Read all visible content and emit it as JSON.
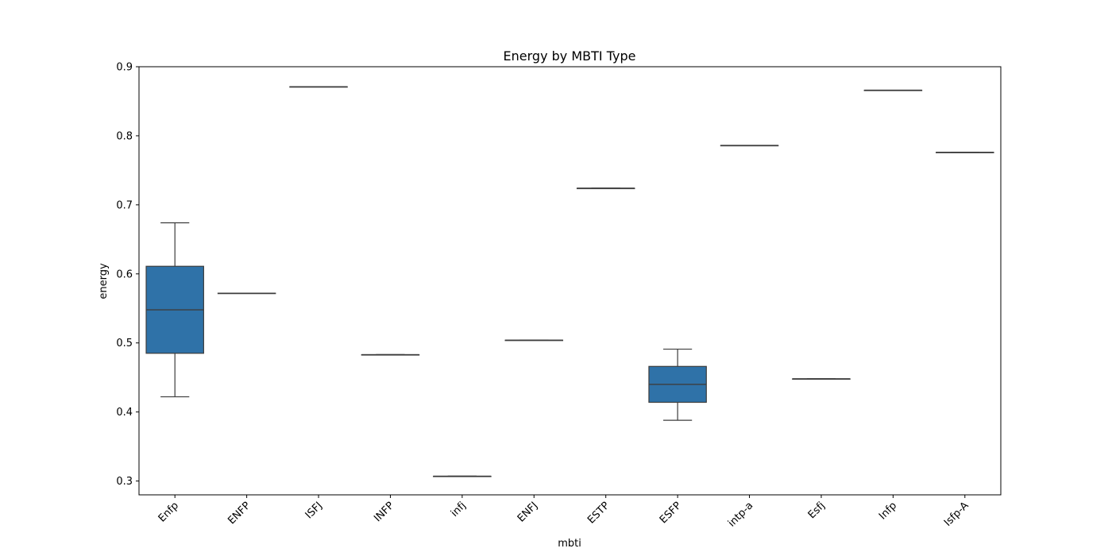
{
  "chart_data": {
    "type": "box",
    "title": "Energy by MBTI Type",
    "xlabel": "mbti",
    "ylabel": "energy",
    "ylim": [
      0.28,
      0.9
    ],
    "yticks": [
      0.3,
      0.4,
      0.5,
      0.6,
      0.7,
      0.8,
      0.9
    ],
    "ytick_labels": [
      "0.3",
      "0.4",
      "0.5",
      "0.6",
      "0.7",
      "0.8",
      "0.9"
    ],
    "box_color": "#2f72a8",
    "line_color": "#3d3d3d",
    "categories": [
      "Enfp",
      "ENFP",
      "ISFJ",
      "INFP",
      "infj",
      "ENFJ",
      "ESTP",
      "ESFP",
      "intp-a",
      "Esfj",
      "Infp",
      "Isfp-A"
    ],
    "boxes": [
      {
        "min": 0.422,
        "q1": 0.485,
        "median": 0.548,
        "q3": 0.611,
        "max": 0.674
      },
      {
        "min": 0.572,
        "q1": 0.572,
        "median": 0.572,
        "q3": 0.572,
        "max": 0.572
      },
      {
        "min": 0.871,
        "q1": 0.871,
        "median": 0.871,
        "q3": 0.871,
        "max": 0.871
      },
      {
        "min": 0.483,
        "q1": 0.483,
        "median": 0.483,
        "q3": 0.483,
        "max": 0.483
      },
      {
        "min": 0.307,
        "q1": 0.307,
        "median": 0.307,
        "q3": 0.307,
        "max": 0.307
      },
      {
        "min": 0.504,
        "q1": 0.504,
        "median": 0.504,
        "q3": 0.504,
        "max": 0.504
      },
      {
        "min": 0.724,
        "q1": 0.724,
        "median": 0.724,
        "q3": 0.724,
        "max": 0.724
      },
      {
        "min": 0.388,
        "q1": 0.414,
        "median": 0.44,
        "q3": 0.466,
        "max": 0.491
      },
      {
        "min": 0.786,
        "q1": 0.786,
        "median": 0.786,
        "q3": 0.786,
        "max": 0.786
      },
      {
        "min": 0.448,
        "q1": 0.448,
        "median": 0.448,
        "q3": 0.448,
        "max": 0.448
      },
      {
        "min": 0.866,
        "q1": 0.866,
        "median": 0.866,
        "q3": 0.866,
        "max": 0.866
      },
      {
        "min": 0.776,
        "q1": 0.776,
        "median": 0.776,
        "q3": 0.776,
        "max": 0.776
      }
    ],
    "grid": false,
    "legend": "none"
  }
}
